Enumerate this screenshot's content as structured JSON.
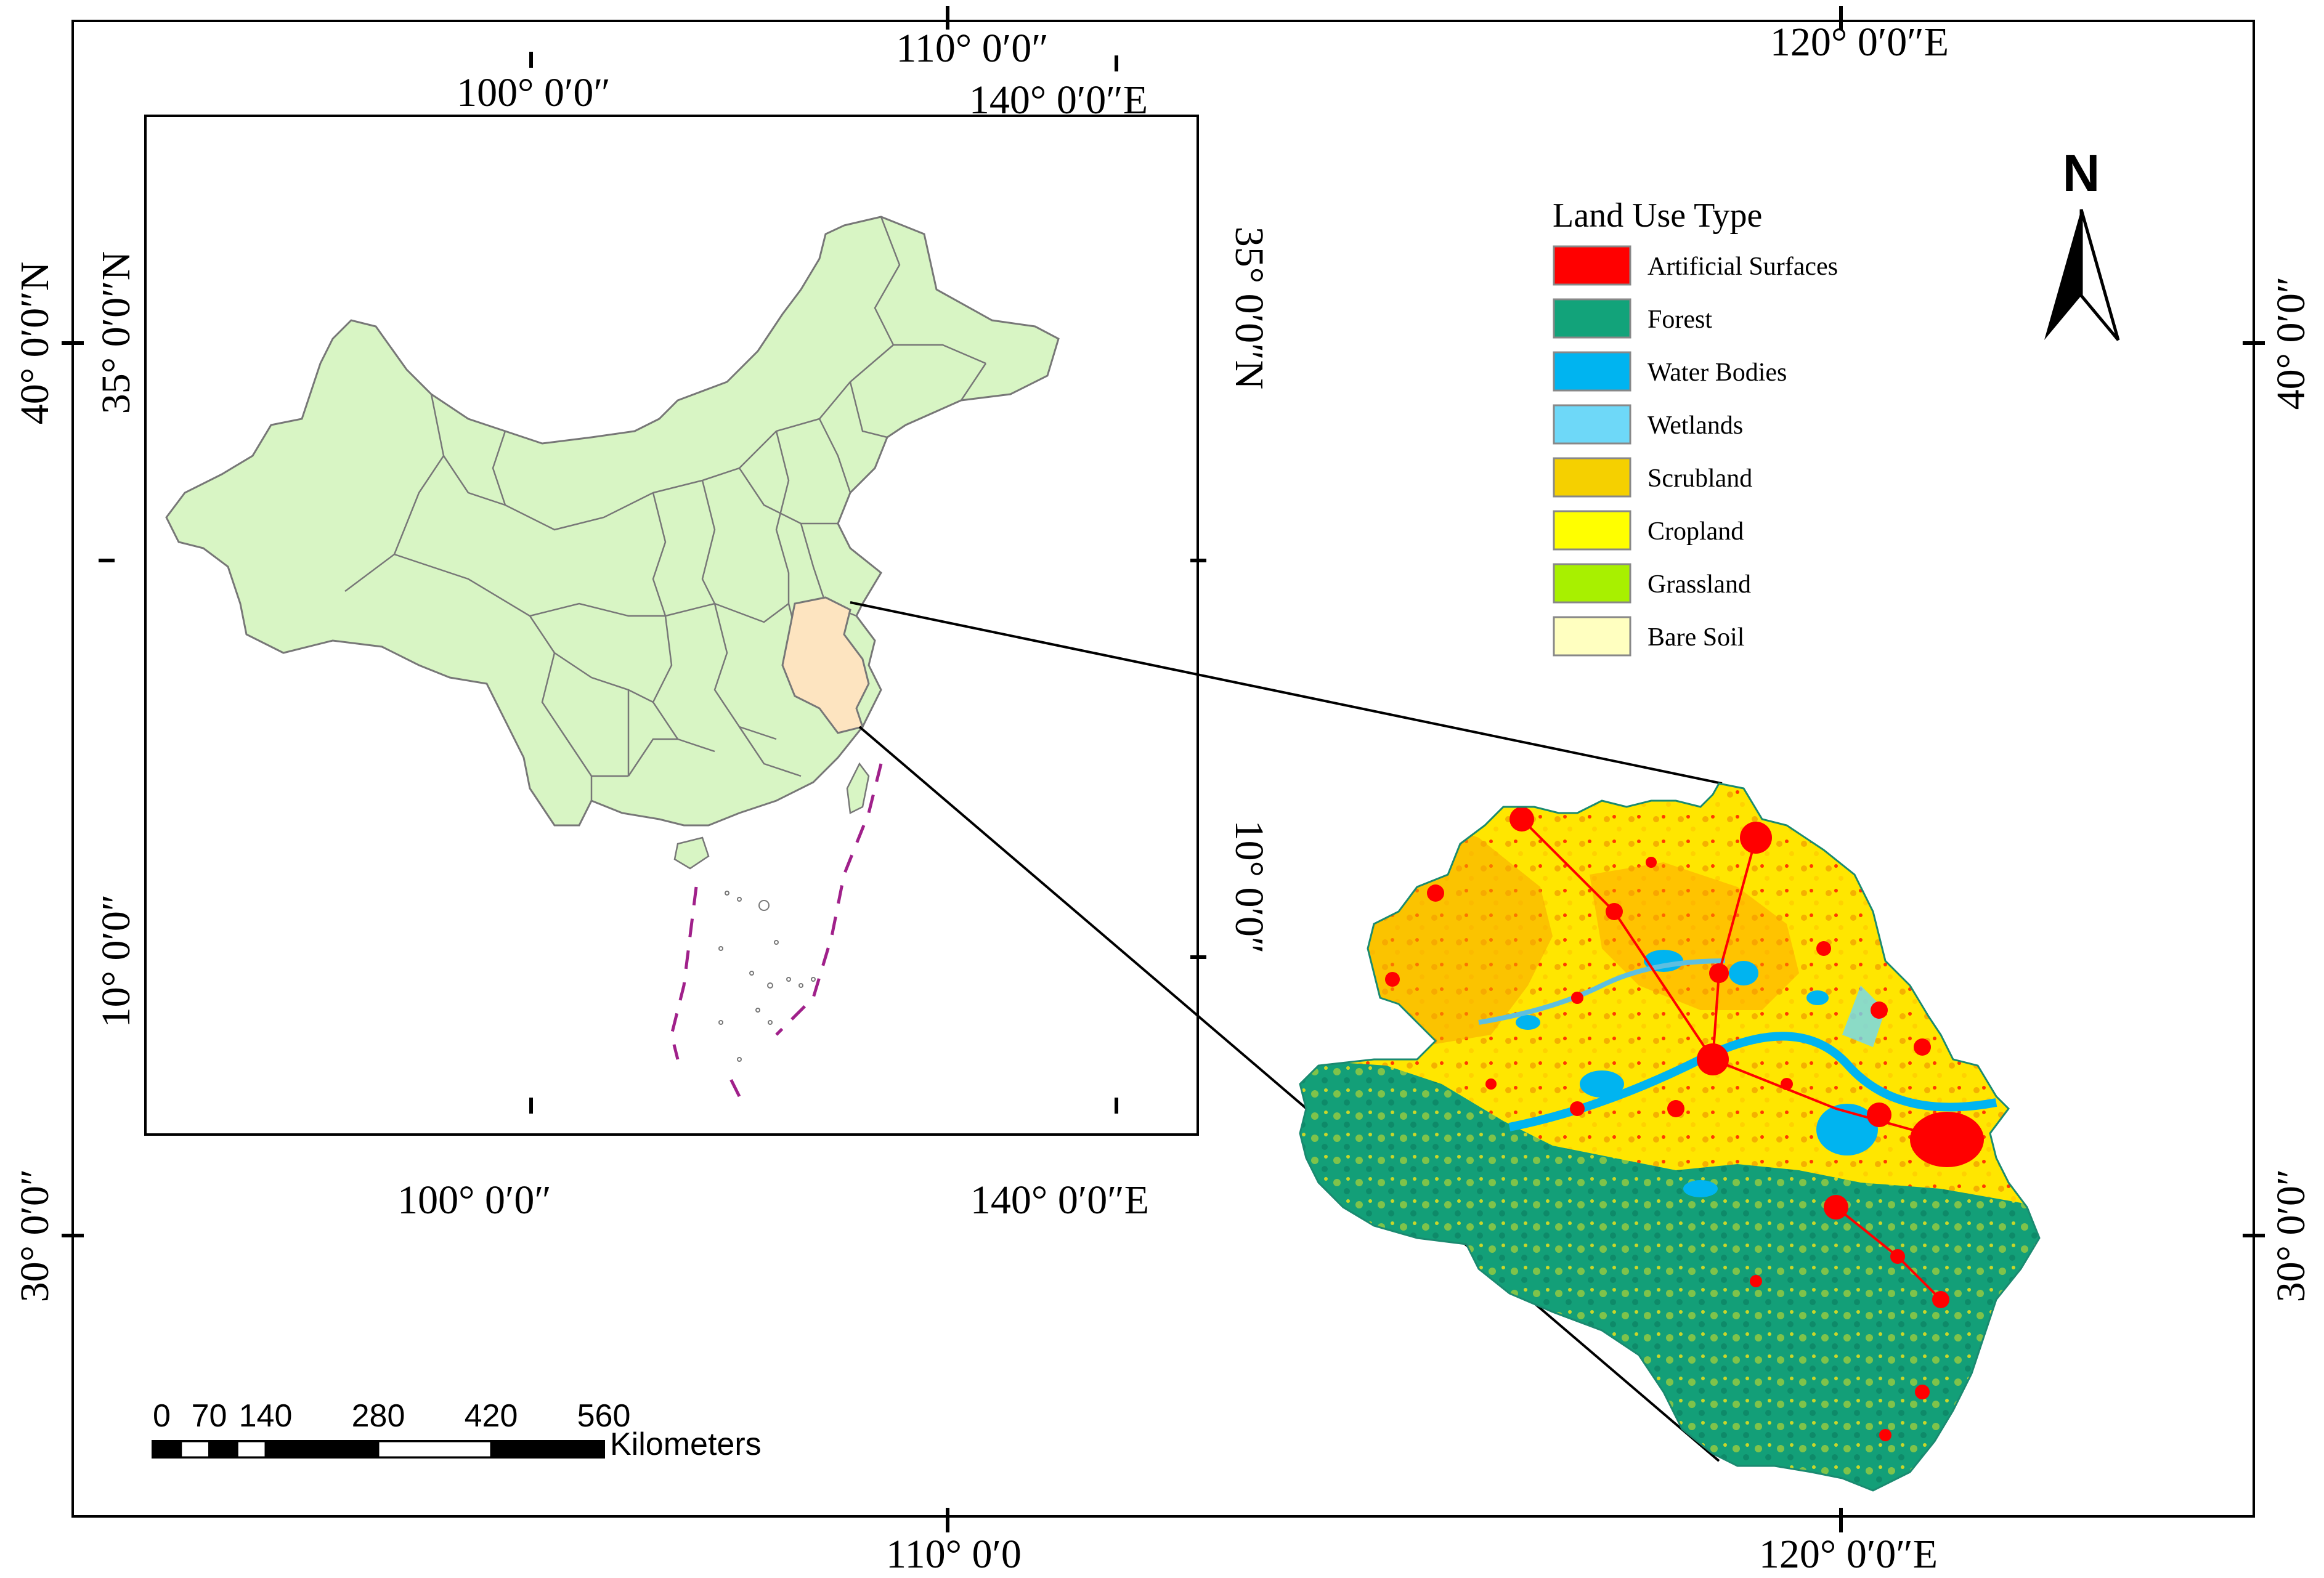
{
  "outer_frame": {
    "top_labels": [
      "110° 0′0″",
      "120° 0′0″E"
    ],
    "bottom_labels": [
      "110° 0′0",
      "120° 0′0″E"
    ],
    "left_labels": [
      "40° 0′0″N",
      "30° 0′0″"
    ],
    "right_labels": [
      "40° 0′0″",
      "30° 0′0″"
    ]
  },
  "inset": {
    "top_labels": [
      "100° 0′0″",
      "140° 0′0″E"
    ],
    "bottom_labels": [
      "100° 0′0″",
      "140° 0′0″E"
    ],
    "left_labels": [
      "35° 0′0″N",
      "10° 0′0″"
    ],
    "right_labels": [
      "35° 0′0″N",
      "10° 0′0″"
    ]
  },
  "legend": {
    "title": "Land Use Type",
    "items": [
      {
        "label": "Artificial Surfaces",
        "color": "#ff0000"
      },
      {
        "label": "Forest",
        "color": "#12a37a"
      },
      {
        "label": "Water Bodies",
        "color": "#00b4f0"
      },
      {
        "label": "Wetlands",
        "color": "#6ed8f8"
      },
      {
        "label": "Scrubland",
        "color": "#f5d000"
      },
      {
        "label": "Cropland",
        "color": "#ffff00"
      },
      {
        "label": "Grassland",
        "color": "#a8f000"
      },
      {
        "label": "Bare Soil",
        "color": "#ffffc0"
      }
    ]
  },
  "north_arrow": {
    "label": "N"
  },
  "scale_bar": {
    "ticks": [
      "0",
      "70",
      "140",
      "280",
      "420",
      "560"
    ],
    "unit": "Kilometers"
  },
  "colors": {
    "china_fill": "#d8f5c4",
    "highlight_fill": "#fde4c0",
    "border_line": "#777777",
    "dash_line": "#a0208a"
  }
}
